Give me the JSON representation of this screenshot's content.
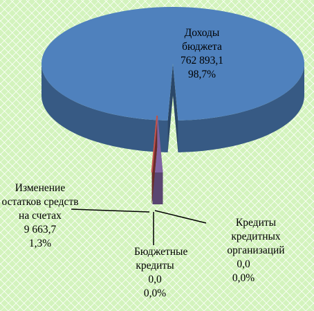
{
  "chart_data": {
    "type": "pie",
    "style": "3d-exploded",
    "categories": [
      "Доходы бюджета",
      "Изменение остатков средств на счетах",
      "Бюджетные кредиты",
      "Кредиты кредитных организаций"
    ],
    "values": [
      762893.1,
      9663.7,
      0,
      0
    ],
    "value_labels": [
      "762 893,1",
      "9 663,7",
      "0,0",
      "0,0"
    ],
    "percents": [
      98.7,
      1.3,
      0,
      0
    ],
    "percent_labels": [
      "98,7%",
      "1,3%",
      "0,0%",
      "0,0%"
    ],
    "colors": [
      "#4f81bd",
      "#8064a2",
      "#9bbb59",
      "#c0504d"
    ]
  }
}
